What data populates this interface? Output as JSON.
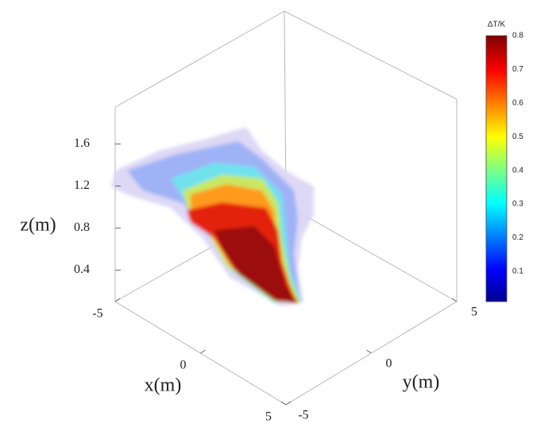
{
  "chart_data": {
    "type": "surface3d",
    "xlabel": "x(m)",
    "ylabel": "y(m)",
    "zlabel": "z(m)",
    "xlim": [
      -5,
      5
    ],
    "xticks": [
      -5,
      0,
      5
    ],
    "ylim": [
      -5,
      5
    ],
    "yticks": [
      -5,
      0,
      5
    ],
    "zlim": [
      0.1,
      1.95
    ],
    "zticks": [
      0.4,
      0.8,
      1.2,
      1.6
    ],
    "colorbar": {
      "title": "ΔT/K",
      "lim": [
        0.01,
        0.8
      ],
      "ticks": [
        0.1,
        0.2,
        0.3,
        0.4,
        0.5,
        0.6,
        0.7,
        0.8
      ]
    }
  }
}
